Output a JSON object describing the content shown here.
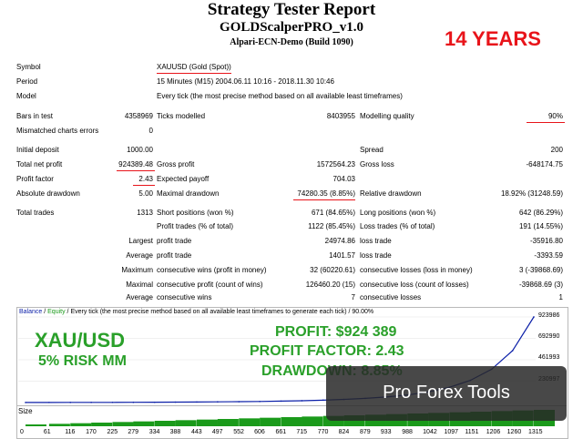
{
  "header": {
    "title": "Strategy Tester Report",
    "ea_name": "GOLDScalperPRO_v1.0",
    "server": "Alpari-ECN-Demo (Build 1090)",
    "banner": "14 YEARS"
  },
  "report": {
    "symbol_label": "Symbol",
    "symbol_value": "XAUUSD (Gold (Spot))",
    "period_label": "Period",
    "period_value": "15 Minutes (M15) 2004.06.11 10:16 - 2018.11.30 10:46",
    "model_label": "Model",
    "model_value": "Every tick (the most precise method based on all available least timeframes)",
    "bars_label": "Bars in test",
    "bars_value": "4358969",
    "ticks_label": "Ticks modelled",
    "ticks_value": "8403955",
    "quality_label": "Modelling quality",
    "quality_value": "90%",
    "mismatch_label": "Mismatched charts errors",
    "mismatch_value": "0",
    "deposit_label": "Initial deposit",
    "deposit_value": "1000.00",
    "spread_label": "Spread",
    "spread_value": "200",
    "netprofit_label": "Total net profit",
    "netprofit_value": "924389.48",
    "grossprofit_label": "Gross profit",
    "grossprofit_value": "1572564.23",
    "grossloss_label": "Gross loss",
    "grossloss_value": "-648174.75",
    "pf_label": "Profit factor",
    "pf_value": "2.43",
    "payoff_label": "Expected payoff",
    "payoff_value": "704.03",
    "absdd_label": "Absolute drawdown",
    "absdd_value": "5.00",
    "maxdd_label": "Maximal drawdown",
    "maxdd_value": "74280.35 (8.85%)",
    "reldd_label": "Relative drawdown",
    "reldd_value": "18.92% (31248.59)",
    "trades_label": "Total trades",
    "trades_value": "1313",
    "short_label": "Short positions (won %)",
    "short_value": "671 (84.65%)",
    "long_label": "Long positions (won %)",
    "long_value": "642 (86.29%)",
    "profit_trades_label": "Profit trades (% of total)",
    "profit_trades_value": "1122 (85.45%)",
    "loss_trades_label": "Loss trades (% of total)",
    "loss_trades_value": "191 (14.55%)",
    "largest_label": "Largest",
    "largest_profit_label": "profit trade",
    "largest_profit_value": "24974.86",
    "largest_loss_label": "loss trade",
    "largest_loss_value": "-35916.80",
    "average_label": "Average",
    "average_profit_label": "profit trade",
    "average_profit_value": "1401.57",
    "average_loss_label": "loss trade",
    "average_loss_value": "-3393.59",
    "maximum_label": "Maximum",
    "max_wins_label": "consecutive wins (profit in money)",
    "max_wins_value": "32 (60220.61)",
    "max_losses_label": "consecutive losses (loss in money)",
    "max_losses_value": "3 (-39868.69)",
    "maximal_label": "Maximal",
    "maximal_profit_label": "consecutive profit (count of wins)",
    "maximal_profit_value": "126460.20 (15)",
    "maximal_loss_label": "consecutive loss (count of losses)",
    "maximal_loss_value": "-39868.69 (3)",
    "avg2_label": "Average",
    "avg_wins_label": "consecutive wins",
    "avg_wins_value": "7",
    "avg_losses_label": "consecutive losses",
    "avg_losses_value": "1"
  },
  "chart": {
    "legend_balance": "Balance",
    "legend_sep": " / ",
    "legend_equity": "Equity",
    "legend_rest": " / Every tick (the most precise method based on all available least timeframes to generate each tick) / 90.00%",
    "size_label": "Size",
    "overlay_pair": "XAU/USD",
    "overlay_risk": "5% RISK MM",
    "overlay_profit": "PROFIT: $924 389",
    "overlay_pf": "PROFIT FACTOR: 2.43",
    "overlay_dd": "DRAWDOWN: 8.85%",
    "watermark": "Pro Forex Tools",
    "colors": {
      "balance": "#0b1fa8",
      "equity": "#1a9a1a",
      "accent": "#e8141a"
    }
  },
  "chart_data": {
    "type": "line",
    "x": [
      0,
      61,
      116,
      170,
      225,
      279,
      334,
      388,
      443,
      497,
      552,
      606,
      661,
      715,
      770,
      824,
      879,
      933,
      988,
      1042,
      1097,
      1151,
      1206,
      1260,
      1315
    ],
    "x_tick_labels": [
      "0",
      "61",
      "116",
      "170",
      "225",
      "279",
      "334",
      "388",
      "443",
      "497",
      "552",
      "606",
      "661",
      "715",
      "770",
      "824",
      "879",
      "933",
      "988",
      "1042",
      "1097",
      "1151",
      "1206",
      "1260",
      "1315"
    ],
    "y_tick_labels": [
      "923986",
      "692990",
      "461993",
      "230997"
    ],
    "series": [
      {
        "name": "Balance",
        "values": [
          1000,
          1200,
          1500,
          1900,
          2400,
          3000,
          3800,
          4800,
          6000,
          7600,
          9600,
          12000,
          15500,
          20000,
          26000,
          34000,
          45000,
          60000,
          82000,
          115000,
          165000,
          240000,
          360000,
          560000,
          924389
        ]
      }
    ],
    "ylim": [
      0,
      923986
    ],
    "xlim": [
      0,
      1315
    ]
  }
}
